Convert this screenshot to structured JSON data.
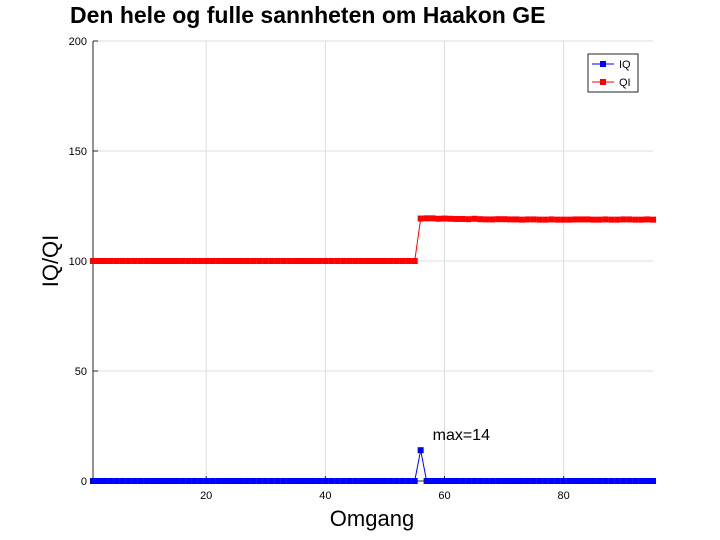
{
  "chart_data": {
    "type": "line",
    "title": "Den hele og fulle sannheten om Haakon GE",
    "xlabel": "Omgang",
    "ylabel": "IQ/QI",
    "xlim": [
      1,
      95
    ],
    "ylim": [
      0,
      200
    ],
    "xticks": [
      20,
      40,
      60,
      80
    ],
    "yticks": [
      0,
      50,
      100,
      150,
      200
    ],
    "grid": true,
    "legend_position": "top-right",
    "x": [
      1,
      2,
      3,
      4,
      5,
      6,
      7,
      8,
      9,
      10,
      11,
      12,
      13,
      14,
      15,
      16,
      17,
      18,
      19,
      20,
      21,
      22,
      23,
      24,
      25,
      26,
      27,
      28,
      29,
      30,
      31,
      32,
      33,
      34,
      35,
      36,
      37,
      38,
      39,
      40,
      41,
      42,
      43,
      44,
      45,
      46,
      47,
      48,
      49,
      50,
      51,
      52,
      53,
      54,
      55,
      56,
      57,
      58,
      59,
      60,
      61,
      62,
      63,
      64,
      65,
      66,
      67,
      68,
      69,
      70,
      71,
      72,
      73,
      74,
      75,
      76,
      77,
      78,
      79,
      80,
      81,
      82,
      83,
      84,
      85,
      86,
      87,
      88,
      89,
      90,
      91,
      92,
      93,
      94,
      95
    ],
    "series": [
      {
        "name": "IQ",
        "color": "#0000ff",
        "values": [
          0,
          0,
          0,
          0,
          0,
          0,
          0,
          0,
          0,
          0,
          0,
          0,
          0,
          0,
          0,
          0,
          0,
          0,
          0,
          0,
          0,
          0,
          0,
          0,
          0,
          0,
          0,
          0,
          0,
          0,
          0,
          0,
          0,
          0,
          0,
          0,
          0,
          0,
          0,
          0,
          0,
          0,
          0,
          0,
          0,
          0,
          0,
          0,
          0,
          0,
          0,
          0,
          0,
          0,
          0,
          14,
          0,
          0,
          0,
          0,
          0,
          0,
          0,
          0,
          0,
          0,
          0,
          0,
          0,
          0,
          0,
          0,
          0,
          0,
          0,
          0,
          0,
          0,
          0,
          0,
          0,
          0,
          0,
          0,
          0,
          0,
          0,
          0,
          0,
          0,
          0,
          0,
          0,
          0,
          0
        ]
      },
      {
        "name": "QI",
        "color": "#ff0000",
        "values": [
          100,
          100,
          100,
          100,
          100,
          100,
          100,
          100,
          100,
          100,
          100,
          100,
          100,
          100,
          100,
          100,
          100,
          100,
          100,
          100,
          100,
          100,
          100,
          100,
          100,
          100,
          100,
          100,
          100,
          100,
          100,
          100,
          100,
          100,
          100,
          100,
          100,
          100,
          100,
          100,
          100,
          100,
          100,
          100,
          100,
          100,
          100,
          100,
          100,
          100,
          100,
          100,
          100,
          100,
          100,
          119.3,
          119.4,
          119.4,
          119.2,
          119.3,
          119.2,
          119.1,
          119.1,
          119,
          119.2,
          119,
          118.9,
          118.9,
          119,
          119,
          118.9,
          118.9,
          118.8,
          118.9,
          118.9,
          118.8,
          118.8,
          118.9,
          118.8,
          118.8,
          118.8,
          118.9,
          118.9,
          118.9,
          118.8,
          118.8,
          118.9,
          118.8,
          118.8,
          118.9,
          118.9,
          118.8,
          118.8,
          118.9,
          118.8
        ]
      }
    ],
    "annotations": [
      {
        "text": "max=14",
        "x": 57,
        "y": 14
      }
    ]
  }
}
